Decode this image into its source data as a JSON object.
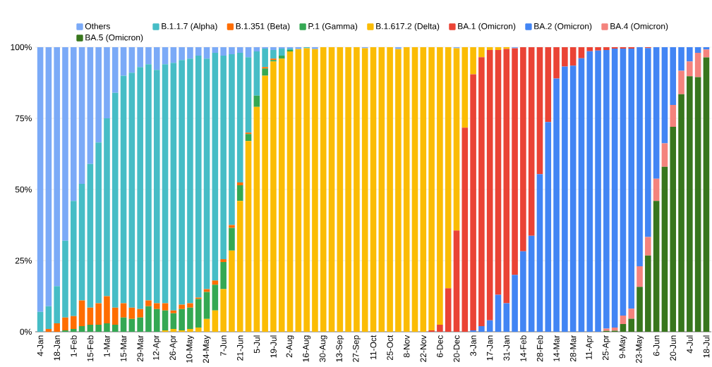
{
  "chart_data": {
    "type": "bar",
    "stacked": true,
    "categories": [
      "4-Jan",
      null,
      "18-Jan",
      null,
      "1-Feb",
      null,
      "15-Feb",
      null,
      "1-Mar",
      null,
      "15-Mar",
      null,
      "29-Mar",
      null,
      "12-Apr",
      null,
      "26-Apr",
      null,
      "10-May",
      null,
      "24-May",
      null,
      "7-Jun",
      null,
      "21-Jun",
      null,
      "5-Jul",
      null,
      "19-Jul",
      null,
      "2-Aug",
      null,
      "16-Aug",
      null,
      "30-Aug",
      null,
      "13-Sep",
      null,
      "27-Sep",
      null,
      "11-Oct",
      null,
      "25-Oct",
      null,
      "8-Nov",
      null,
      "22-Nov",
      null,
      "6-Dec",
      null,
      "20-Dec",
      null,
      "3-Jan",
      null,
      "17-Jan",
      null,
      "31-Jan",
      null,
      "14-Feb",
      null,
      "28-Feb",
      null,
      "14-Mar",
      null,
      "28-Mar",
      null,
      "11-Apr",
      null,
      "25-Apr",
      null,
      "9-May",
      null,
      "23-May",
      null,
      "6-Jun",
      null,
      "20-Jun",
      null,
      "4-Jul",
      null,
      "18-Jul"
    ],
    "series": [
      {
        "name": "BA.5 (Omicron)",
        "color": "#38761d",
        "values": [
          0,
          0,
          0,
          0,
          0,
          0,
          0,
          0,
          0,
          0,
          0,
          0,
          0,
          0,
          0,
          0,
          0,
          0,
          0,
          0,
          0,
          0,
          0,
          0,
          0,
          0,
          0,
          0,
          0,
          0,
          0,
          0,
          0,
          0,
          0,
          0,
          0,
          0,
          0,
          0,
          0,
          0,
          0,
          0,
          0,
          0,
          0,
          0,
          0,
          0,
          0,
          0,
          0,
          0,
          0,
          0,
          0,
          0,
          0,
          0,
          0,
          0,
          0,
          0,
          0,
          0,
          0,
          0,
          0.3,
          0.4,
          2.7,
          4.6,
          15.8,
          26.8,
          46,
          58,
          72,
          83.5,
          89.8,
          89.5,
          96.4
        ]
      },
      {
        "name": "BA.4 (Omicron)",
        "color": "#f4837d",
        "values": [
          0,
          0,
          0,
          0,
          0,
          0,
          0,
          0,
          0,
          0,
          0,
          0,
          0,
          0,
          0,
          0,
          0,
          0,
          0,
          0,
          0,
          0,
          0,
          0,
          0,
          0,
          0,
          0,
          0,
          0,
          0,
          0,
          0,
          0,
          0,
          0,
          0,
          0,
          0,
          0,
          0,
          0,
          0,
          0,
          0,
          0,
          0,
          0,
          0,
          0,
          0,
          0,
          0,
          0,
          0,
          0,
          0,
          0,
          0,
          0,
          0,
          0,
          0,
          0,
          0,
          0,
          0,
          0,
          0.8,
          1.1,
          3,
          3.5,
          7.2,
          6.5,
          7.8,
          8.2,
          7.7,
          8.2,
          5.2,
          8.5,
          2.8
        ]
      },
      {
        "name": "BA.2 (Omicron)",
        "color": "#4285f4",
        "values": [
          0,
          0,
          0,
          0,
          0,
          0,
          0,
          0,
          0,
          0,
          0,
          0,
          0,
          0,
          0,
          0,
          0,
          0,
          0,
          0,
          0,
          0,
          0,
          0,
          0,
          0,
          0,
          0,
          0,
          0,
          0,
          0,
          0,
          0,
          0,
          0,
          0,
          0,
          0,
          0,
          0,
          0,
          0,
          0,
          0,
          0,
          0,
          0,
          0,
          0,
          0,
          0,
          0.5,
          2,
          4,
          13,
          10,
          20,
          28.3,
          33.7,
          55.4,
          73.7,
          89,
          93.2,
          93.5,
          96.1,
          98.6,
          98.8,
          97.9,
          98,
          93.8,
          91.4,
          77,
          66.4,
          46.2,
          33.8,
          20.3,
          8.3,
          5,
          2,
          0.8
        ]
      },
      {
        "name": "BA.1 (Omicron)",
        "color": "#ea4335",
        "values": [
          0,
          0,
          0,
          0,
          0,
          0,
          0,
          0,
          0,
          0,
          0,
          0,
          0,
          0,
          0,
          0,
          0,
          0,
          0,
          0,
          0,
          0,
          0,
          0,
          0,
          0,
          0,
          0,
          0,
          0,
          0,
          0,
          0,
          0,
          0,
          0,
          0,
          0,
          0,
          0,
          0,
          0,
          0,
          0,
          0,
          0,
          0,
          0.5,
          2.5,
          15.3,
          35.6,
          71.7,
          90,
          94.5,
          95,
          86,
          89.4,
          79.6,
          71.7,
          66.3,
          44.6,
          26.3,
          11,
          6.8,
          6.5,
          3.9,
          1.4,
          1.2,
          1,
          0.5,
          0.5,
          0.5,
          0,
          0.3,
          0,
          0,
          0,
          0,
          0,
          0,
          0
        ]
      },
      {
        "name": "B.1.617.2 (Delta)",
        "color": "#fbbc04",
        "values": [
          0,
          0,
          0,
          0,
          0,
          0,
          0,
          0,
          0,
          0,
          0,
          0,
          0,
          0,
          0,
          0.5,
          1,
          0.5,
          1,
          1.5,
          4.5,
          7.5,
          15,
          28.5,
          46,
          67,
          79,
          90,
          95,
          96,
          98.5,
          99.3,
          99.6,
          99.3,
          100,
          100,
          100,
          100,
          100,
          99.6,
          100,
          100,
          100,
          99.3,
          100,
          100,
          100,
          99.5,
          97.5,
          84.7,
          64,
          28.3,
          9.5,
          3.5,
          1,
          1,
          0.6,
          0,
          0,
          0,
          0,
          0,
          0,
          0,
          0,
          0,
          0,
          0,
          0,
          0,
          0,
          0,
          0,
          0,
          0,
          0,
          0,
          0,
          0,
          0,
          0
        ]
      },
      {
        "name": "P.1 (Gamma)",
        "color": "#34a853",
        "values": [
          0,
          0,
          0,
          0.5,
          1,
          2,
          2.5,
          2.5,
          3,
          2.5,
          5,
          4.5,
          5,
          9,
          8,
          7,
          5.5,
          7.5,
          7.5,
          10,
          9.5,
          9,
          9.5,
          8,
          5.5,
          2.5,
          4,
          2.5,
          0.5,
          1,
          0.5,
          0,
          0,
          0,
          0,
          0,
          0,
          0,
          0,
          0,
          0,
          0,
          0,
          0,
          0,
          0,
          0,
          0,
          0,
          0,
          0,
          0,
          0,
          0,
          0,
          0,
          0,
          0,
          0,
          0,
          0,
          0,
          0,
          0,
          0,
          0,
          0,
          0,
          0,
          0,
          0,
          0,
          0,
          0,
          0,
          0,
          0,
          0,
          0,
          0,
          0
        ]
      },
      {
        "name": "B.1.351 (Beta)",
        "color": "#ff6d01",
        "values": [
          0,
          1,
          3,
          4.5,
          4.5,
          9,
          6,
          7.5,
          9.5,
          6,
          5,
          4,
          3,
          2,
          2,
          2.5,
          1,
          1.5,
          1.5,
          0.5,
          1,
          1.5,
          1,
          1,
          1,
          0.5,
          0,
          0.5,
          0.5,
          0,
          0,
          0,
          0,
          0,
          0,
          0,
          0,
          0,
          0,
          0,
          0,
          0,
          0,
          0,
          0,
          0,
          0,
          0,
          0,
          0,
          0,
          0,
          0,
          0,
          0,
          0,
          0,
          0,
          0,
          0,
          0,
          0,
          0,
          0,
          0,
          0,
          0,
          0,
          0,
          0,
          0,
          0,
          0,
          0,
          0,
          0,
          0,
          0,
          0,
          0,
          0
        ]
      },
      {
        "name": "B.1.1.7 (Alpha)",
        "color": "#46bdc6",
        "values": [
          7,
          8,
          13,
          27,
          40.5,
          41,
          50.5,
          56.5,
          62.5,
          75.5,
          80,
          82.5,
          85,
          83,
          82,
          84,
          87,
          86,
          86,
          85,
          81,
          80,
          71.5,
          60,
          45.5,
          26.5,
          15.5,
          6.5,
          3,
          2.5,
          0.5,
          0,
          0.4,
          0,
          0,
          0,
          0,
          0,
          0,
          0,
          0,
          0,
          0,
          0,
          0,
          0,
          0,
          0,
          0,
          0,
          0,
          0,
          0,
          0,
          0,
          0,
          0,
          0,
          0,
          0,
          0,
          0,
          0,
          0,
          0,
          0,
          0,
          0,
          0,
          0,
          0,
          0,
          0,
          0,
          0,
          0,
          0,
          0,
          0,
          0,
          0
        ]
      },
      {
        "name": "Others",
        "color": "#7baaf7",
        "values": [
          93,
          91,
          84,
          68,
          54,
          48,
          41,
          33.5,
          25,
          16,
          10,
          9,
          7,
          6,
          8,
          6,
          5.5,
          4.5,
          4,
          3,
          4,
          2,
          3,
          2.5,
          2,
          3.5,
          1.5,
          0.5,
          1,
          0.5,
          0.5,
          0.7,
          0,
          0.7,
          0,
          0,
          0,
          0,
          0,
          0.4,
          0,
          0,
          0,
          0.7,
          0,
          0,
          0,
          0,
          0,
          0,
          0.4,
          0,
          0,
          0,
          0,
          0,
          0,
          0.4,
          0,
          0,
          0,
          0,
          0,
          0,
          0,
          0,
          0,
          0,
          0,
          0,
          0,
          0,
          0,
          0,
          0,
          0,
          0,
          0,
          0,
          0,
          0
        ]
      }
    ],
    "ylim": [
      0,
      100
    ],
    "yticks": [
      {
        "value": 0,
        "label": "0%"
      },
      {
        "value": 25,
        "label": "25%"
      },
      {
        "value": 50,
        "label": "50%"
      },
      {
        "value": 75,
        "label": "75%"
      },
      {
        "value": 100,
        "label": "100%"
      }
    ],
    "grid": "y",
    "legend": "top"
  }
}
